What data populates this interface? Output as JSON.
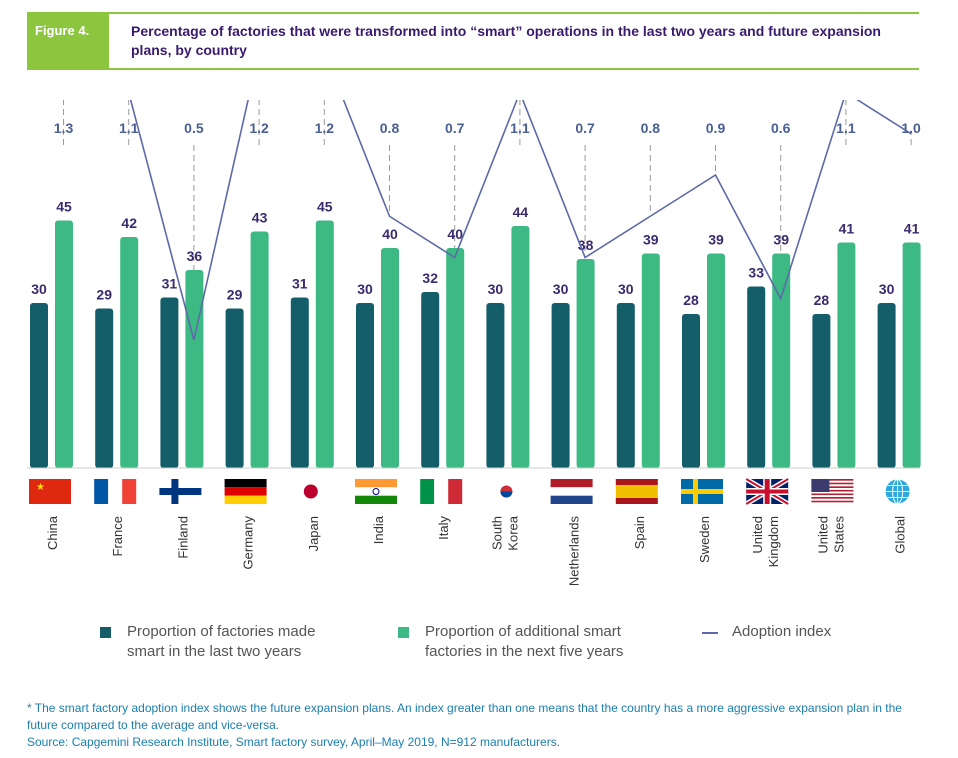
{
  "figure": {
    "tag": "Figure 4.",
    "title": "Percentage of factories that were transformed into “smart” operations in the last two years and future expansion plans, by country"
  },
  "colors": {
    "dark_bar": "#135e68",
    "light_bar": "#3dba84",
    "index_line": "#5d6aa8",
    "accent": "#8cc63f"
  },
  "chart_data": {
    "type": "bar",
    "categories": [
      "China",
      "France",
      "Finland",
      "Germany",
      "Japan",
      "India",
      "Italy",
      "South Korea",
      "Netherlands",
      "Spain",
      "Sweden",
      "United Kingdom",
      "United States",
      "Global"
    ],
    "category_lines": [
      [
        "China"
      ],
      [
        "France"
      ],
      [
        "Finland"
      ],
      [
        "Germany"
      ],
      [
        "Japan"
      ],
      [
        "India"
      ],
      [
        "Italy"
      ],
      [
        "South",
        "Korea"
      ],
      [
        "Netherlands"
      ],
      [
        "Spain"
      ],
      [
        "Sweden"
      ],
      [
        "United",
        "Kingdom"
      ],
      [
        "United",
        "States"
      ],
      [
        "Global"
      ]
    ],
    "series": [
      {
        "name": "Proportion of factories made smart in the last two years",
        "values": [
          30,
          29,
          31,
          29,
          31,
          30,
          32,
          30,
          30,
          30,
          28,
          33,
          28,
          30
        ]
      },
      {
        "name": "Proportion of additional smart factories in the next five years",
        "values": [
          45,
          42,
          36,
          43,
          45,
          40,
          40,
          44,
          38,
          39,
          39,
          39,
          41,
          41
        ]
      }
    ],
    "adoption_index": [
      1.3,
      1.1,
      0.5,
      1.2,
      1.2,
      0.8,
      0.7,
      1.1,
      0.7,
      0.8,
      0.9,
      0.6,
      1.1,
      1.0
    ],
    "adoption_index_labels": [
      "1.3",
      "1.1",
      "0.5",
      "1.2",
      "1.2",
      "0.8",
      "0.7",
      "1.1",
      "0.7",
      "0.8",
      "0.9",
      "0.6",
      "1.1",
      "1.0"
    ],
    "flags": [
      "china-flag-icon",
      "france-flag-icon",
      "finland-flag-icon",
      "germany-flag-icon",
      "japan-flag-icon",
      "india-flag-icon",
      "italy-flag-icon",
      "south-korea-flag-icon",
      "netherlands-flag-icon",
      "spain-flag-icon",
      "sweden-flag-icon",
      "uk-flag-icon",
      "us-flag-icon",
      "globe-icon"
    ]
  },
  "legend": {
    "dark": "Proportion of factories made\nsmart in the last two years",
    "light": "Proportion of additional smart\nfactories in the next five years",
    "line": "Adoption index"
  },
  "footnote": {
    "line1": "* The smart factory adoption index shows the future expansion plans. An index greater than one means that the country has a more aggressive expansion plan in the future compared to the average and vice-versa.",
    "line2": "Source: Capgemini Research Institute, Smart factory survey, April–May 2019, N=912 manufacturers."
  }
}
